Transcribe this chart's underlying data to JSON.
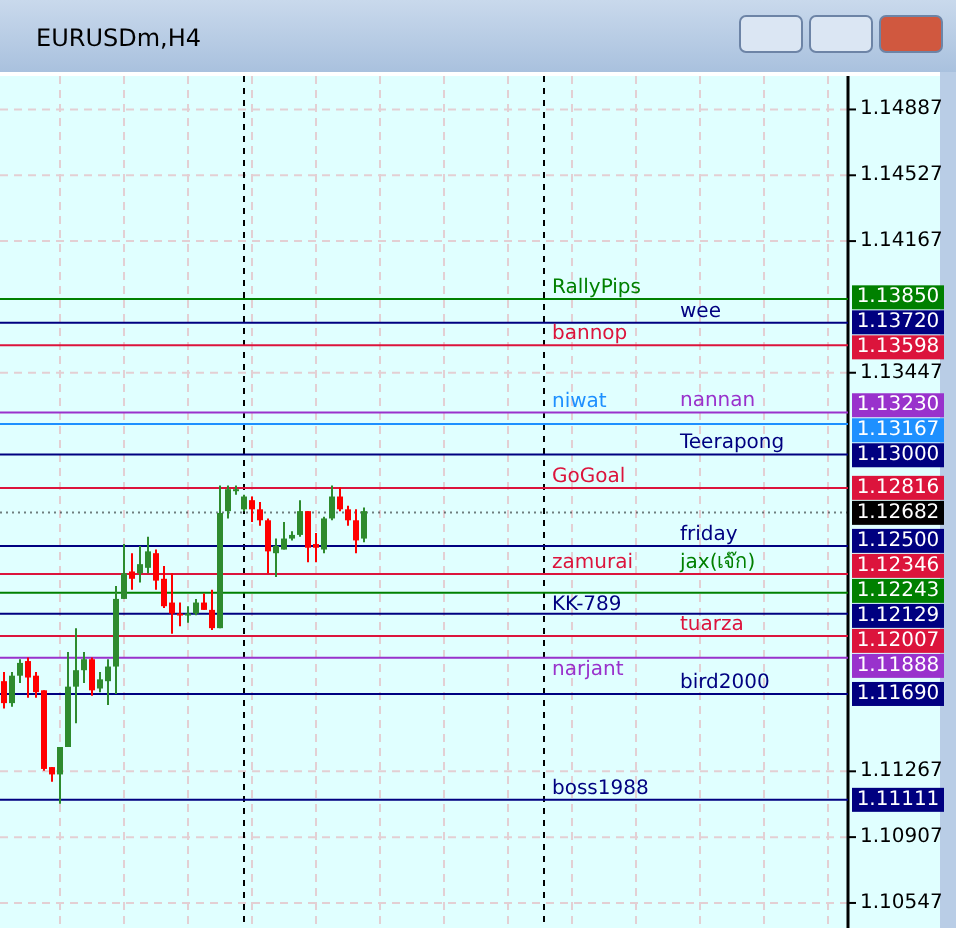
{
  "chart_data": {
    "type": "candlestick",
    "title": "EURUSDm,H4",
    "categories": [
      null,
      null,
      null,
      null,
      null,
      null,
      null,
      null,
      null,
      null,
      null,
      null,
      null,
      null,
      null,
      null,
      null,
      null,
      null,
      null,
      null,
      null,
      null,
      null,
      null,
      null,
      null,
      null,
      null,
      null,
      null,
      null,
      null,
      null,
      null,
      null,
      null,
      null,
      null,
      null,
      null,
      null,
      null,
      null,
      null,
      null,
      null,
      null,
      null,
      null,
      null,
      null,
      null,
      null,
      null,
      null,
      null,
      null,
      null,
      null,
      null,
      null,
      null,
      null,
      null,
      null,
      null,
      null,
      null,
      null,
      null,
      null,
      null,
      null,
      null,
      null,
      null,
      null,
      null,
      null,
      null,
      null,
      null,
      null,
      null,
      null,
      null,
      null,
      null,
      null,
      null,
      null,
      null,
      null,
      null,
      null,
      null,
      null,
      null,
      null,
      null,
      null,
      null,
      null,
      null,
      null
    ],
    "ohlc": [
      [
        1.1176,
        1.1181,
        1.1161,
        1.1164
      ],
      [
        1.1164,
        1.1181,
        1.1162,
        1.1179
      ],
      [
        1.1179,
        1.1188,
        1.1175,
        1.1186
      ],
      [
        1.1187,
        1.1189,
        1.1167,
        1.1178
      ],
      [
        1.1179,
        1.1181,
        1.1167,
        1.117
      ],
      [
        1.1171,
        1.1171,
        1.1127,
        1.1128
      ],
      [
        1.1129,
        1.1129,
        1.1121,
        1.1125
      ],
      [
        1.1125,
        1.114,
        1.1109,
        1.114
      ],
      [
        1.114,
        1.1192,
        1.114,
        1.1173
      ],
      [
        1.1173,
        1.1205,
        1.1153,
        1.1182
      ],
      [
        1.1182,
        1.1192,
        1.1175,
        1.1188
      ],
      [
        1.1188,
        1.1189,
        1.1168,
        1.1171
      ],
      [
        1.1172,
        1.1181,
        1.117,
        1.1177
      ],
      [
        1.1176,
        1.1188,
        1.1163,
        1.1184
      ],
      [
        1.1184,
        1.1228,
        1.1169,
        1.1221
      ],
      [
        1.1221,
        1.1251,
        1.1221,
        1.1235
      ],
      [
        1.1236,
        1.1246,
        1.1226,
        1.1232
      ],
      [
        1.1235,
        1.125,
        1.123,
        1.124
      ],
      [
        1.1238,
        1.1255,
        1.1235,
        1.1247
      ],
      [
        1.1246,
        1.1248,
        1.1226,
        1.1231
      ],
      [
        1.1232,
        1.1239,
        1.1216,
        1.1217
      ],
      [
        1.1219,
        1.1235,
        1.1202,
        1.1213
      ],
      [
        1.1213,
        1.1219,
        1.1206,
        1.1212
      ],
      [
        1.1213,
        1.1217,
        1.1208,
        1.1213
      ],
      [
        1.1213,
        1.1221,
        1.1212,
        1.1219
      ],
      [
        1.1219,
        1.1224,
        1.1215,
        1.1215
      ],
      [
        1.1215,
        1.1226,
        1.1204,
        1.1205
      ],
      [
        1.1205,
        1.1283,
        1.1205,
        1.1268
      ],
      [
        1.1269,
        1.1283,
        1.1265,
        1.1281
      ],
      [
        1.128,
        1.1283,
        1.1278,
        1.1281
      ],
      [
        1.127,
        1.1278,
        1.1269,
        1.1277
      ],
      [
        1.1275,
        1.1277,
        1.1263,
        1.127
      ],
      [
        1.127,
        1.1274,
        1.1261,
        1.1264
      ],
      [
        1.1264,
        1.1265,
        1.1235,
        1.1247
      ],
      [
        1.1246,
        1.1254,
        1.1233,
        1.125
      ],
      [
        1.1248,
        1.1263,
        1.1248,
        1.1254
      ],
      [
        1.1254,
        1.1258,
        1.1253,
        1.1256
      ],
      [
        1.1256,
        1.1275,
        1.1255,
        1.1269
      ],
      [
        1.1269,
        1.1269,
        1.1241,
        1.1249
      ],
      [
        1.1251,
        1.1257,
        1.1241,
        1.1249
      ],
      [
        1.1248,
        1.1266,
        1.1246,
        1.1265
      ],
      [
        1.1265,
        1.1283,
        1.1264,
        1.1277
      ],
      [
        1.1277,
        1.1282,
        1.1269,
        1.127
      ],
      [
        1.127,
        1.1272,
        1.1261,
        1.1264
      ],
      [
        1.1264,
        1.127,
        1.1246,
        1.1253
      ],
      [
        1.1254,
        1.1271,
        1.1252,
        1.1269
      ],
      null,
      null,
      null,
      null,
      null,
      null,
      null,
      null,
      null,
      null,
      null,
      null,
      null,
      null,
      null,
      null,
      null,
      null,
      null,
      null,
      null,
      null,
      null,
      null,
      null,
      null,
      null,
      null,
      null,
      null,
      null,
      null,
      null,
      null,
      null,
      null,
      null,
      null,
      null,
      null,
      null,
      null,
      null,
      null,
      null,
      null,
      null,
      null,
      null,
      null,
      null,
      null,
      null,
      null,
      null,
      null,
      null,
      null,
      null,
      null
    ],
    "ylim": [
      1.1041,
      1.1507
    ],
    "yticks": [
      1.14887,
      1.14527,
      1.14167,
      1.13447,
      1.11267,
      1.10907,
      1.10547
    ],
    "grid": true,
    "ref_lines": [
      {
        "axis": "y",
        "value": 1.1385,
        "label": "1.13850",
        "color": "#008000"
      },
      {
        "axis": "y",
        "value": 1.1372,
        "label": "1.13720",
        "color": "#000080"
      },
      {
        "axis": "y",
        "value": 1.13598,
        "label": "1.13598",
        "color": "#dc143c"
      },
      {
        "axis": "y",
        "value": 1.1323,
        "label": "1.13230",
        "color": "#9932cc"
      },
      {
        "axis": "y",
        "value": 1.13167,
        "label": "1.13167",
        "color": "#1e90ff"
      },
      {
        "axis": "y",
        "value": 1.13,
        "label": "1.13000",
        "color": "#000080"
      },
      {
        "axis": "y",
        "value": 1.12816,
        "label": "1.12816",
        "color": "#dc143c"
      },
      {
        "axis": "y",
        "value": 1.12682,
        "label": "1.12682",
        "color": "#000000",
        "line_style": "dotted"
      },
      {
        "axis": "y",
        "value": 1.125,
        "label": "1.12500",
        "color": "#000080"
      },
      {
        "axis": "y",
        "value": 1.12346,
        "label": "1.12346",
        "color": "#dc143c"
      },
      {
        "axis": "y",
        "value": 1.12243,
        "label": "1.12243",
        "color": "#008000"
      },
      {
        "axis": "y",
        "value": 1.12129,
        "label": "1.12129",
        "color": "#000080"
      },
      {
        "axis": "y",
        "value": 1.12007,
        "label": "1.12007",
        "color": "#dc143c"
      },
      {
        "axis": "y",
        "value": 1.11888,
        "label": "1.11888",
        "color": "#9932cc"
      },
      {
        "axis": "y",
        "value": 1.1169,
        "label": "1.11690",
        "color": "#000080"
      },
      {
        "axis": "y",
        "value": 1.11111,
        "label": "1.11111",
        "color": "#000080"
      }
    ],
    "annotations": [
      {
        "text": "RallyPips",
        "y": 1.1385
      },
      {
        "text": "wee",
        "y": 1.1372
      },
      {
        "text": "bannop",
        "y": 1.13598
      },
      {
        "text": "nannan",
        "y": 1.1323
      },
      {
        "text": "niwat",
        "y": 1.13167
      },
      {
        "text": "Teerapong",
        "y": 1.13
      },
      {
        "text": "GoGoal",
        "y": 1.12816
      },
      {
        "text": "friday",
        "y": 1.125
      },
      {
        "text": "zamurai",
        "y": 1.12346
      },
      {
        "text": "jax(เจ๊ก)",
        "y": 1.12243
      },
      {
        "text": "KK-789",
        "y": 1.12129
      },
      {
        "text": "tuarza",
        "y": 1.12007
      },
      {
        "text": "narjant",
        "y": 1.11888
      },
      {
        "text": "bird2000",
        "y": 1.1169
      },
      {
        "text": "boss1988",
        "y": 1.11111
      }
    ]
  }
}
